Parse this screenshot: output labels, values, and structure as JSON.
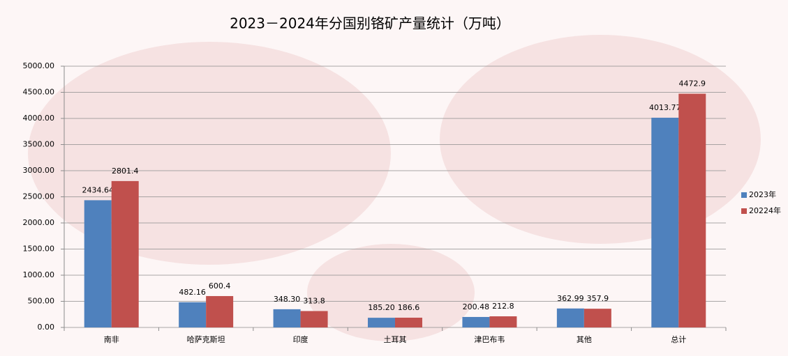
{
  "chart_data": {
    "type": "bar",
    "title": "2023－2024年分国别铬矿产量统计（万吨）",
    "categories": [
      "南非",
      "哈萨克斯坦",
      "印度",
      "土耳其",
      "津巴布韦",
      "其他",
      "总计"
    ],
    "series": [
      {
        "name": "2023年",
        "color": "#4f81bd",
        "label_color": "#ff0000",
        "values": [
          2434.64,
          482.16,
          348.3,
          185.2,
          200.48,
          362.99,
          4013.77
        ],
        "value_labels": [
          "2434.64",
          "482.16",
          "348.30",
          "185.20",
          "200.48",
          "362.99",
          "4013.77"
        ]
      },
      {
        "name": "20224年",
        "color": "#c0504d",
        "label_color": "#000000",
        "values": [
          2801.4,
          600.4,
          313.8,
          186.6,
          212.8,
          357.9,
          4472.9
        ]
      }
    ],
    "ylim": [
      0,
      5000
    ],
    "yticks": [
      {
        "value": 0,
        "label": "0.00"
      },
      {
        "value": 500,
        "label": "500.00"
      },
      {
        "value": 1000,
        "label": "1000.00"
      },
      {
        "value": 1500,
        "label": "1500.00"
      },
      {
        "value": 2000,
        "label": "2000.00"
      },
      {
        "value": 2500,
        "label": "2500.00"
      },
      {
        "value": 3000,
        "label": "3000.00"
      },
      {
        "value": 3500,
        "label": "3500.00"
      },
      {
        "value": 4000,
        "label": "4000.00"
      },
      {
        "value": 4500,
        "label": "4500.00"
      },
      {
        "value": 5000,
        "label": "5000.00"
      }
    ],
    "grid": true,
    "legend": "right"
  }
}
